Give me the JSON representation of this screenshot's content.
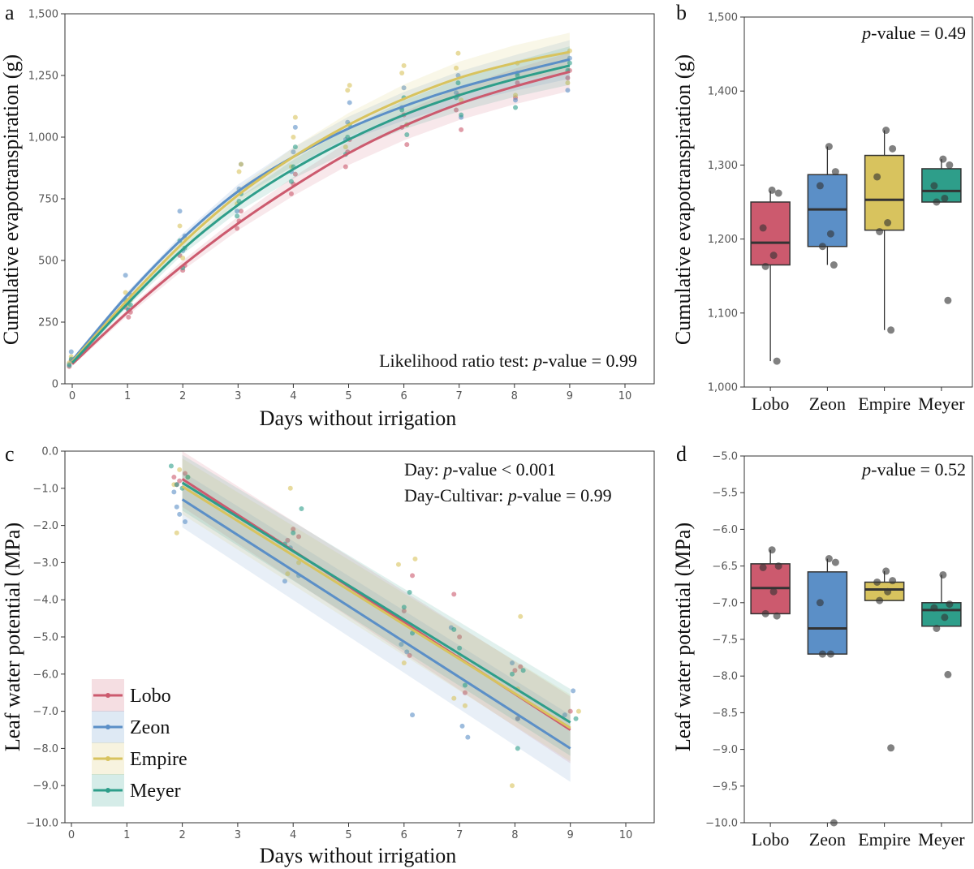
{
  "colors": {
    "Lobo": "#cc5a6e",
    "Zeon": "#5b8fc7",
    "Empire": "#d8c35e",
    "Meyer": "#2e9e8a"
  },
  "chart_data": [
    {
      "id": "a",
      "type": "scatter",
      "panel_label": "a",
      "xlabel": "Days without irrigation",
      "ylabel": "Cumulative evapotranspiration (g)",
      "xlim": [
        0,
        10
      ],
      "ylim": [
        0,
        1500
      ],
      "xticks": [
        0,
        1,
        2,
        3,
        4,
        5,
        6,
        7,
        8,
        9,
        10
      ],
      "yticks": [
        0,
        250,
        500,
        750,
        1000,
        1250,
        1500
      ],
      "ytick_labels": [
        "0",
        "250",
        "500",
        "750",
        "1,000",
        "1,250",
        "1,500"
      ],
      "annotation_plain": "Likelihood ratio test: ",
      "annotation_italic": "p",
      "annotation_rest": "-value = 0.99",
      "grid": false,
      "series": [
        {
          "name": "Lobo",
          "curve": {
            "x": [
              0,
              1,
              2,
              3,
              4,
              5,
              6,
              7,
              8,
              9
            ],
            "y": [
              80,
              290,
              480,
              650,
              800,
              935,
              1045,
              1135,
              1205,
              1265
            ]
          },
          "points": {
            "x": [
              0,
              0,
              1,
              1,
              1,
              2,
              2,
              2,
              3,
              3,
              3,
              4,
              4,
              4,
              5,
              5,
              5,
              6,
              6,
              6,
              7,
              7,
              7,
              8,
              8,
              9,
              9
            ],
            "y": [
              70,
              95,
              270,
              290,
              310,
              460,
              480,
              520,
              630,
              660,
              700,
              770,
              810,
              850,
              880,
              940,
              990,
              970,
              1040,
              1090,
              1030,
              1110,
              1170,
              1160,
              1220,
              1240,
              1270
            ]
          }
        },
        {
          "name": "Zeon",
          "curve": {
            "x": [
              0,
              1,
              2,
              3,
              4,
              5,
              6,
              7,
              8,
              9
            ],
            "y": [
              95,
              360,
              590,
              780,
              920,
              1035,
              1125,
              1200,
              1260,
              1315
            ]
          },
          "points": {
            "x": [
              0,
              0,
              1,
              1,
              1,
              2,
              2,
              2,
              3,
              3,
              3,
              4,
              4,
              4,
              5,
              5,
              5,
              6,
              6,
              6,
              7,
              7,
              7,
              8,
              8,
              9,
              9
            ],
            "y": [
              80,
              130,
              300,
              360,
              440,
              540,
              600,
              700,
              700,
              790,
              890,
              860,
              940,
              1040,
              990,
              1060,
              1140,
              1050,
              1120,
              1200,
              1080,
              1180,
              1250,
              1150,
              1260,
              1190,
              1320
            ]
          }
        },
        {
          "name": "Empire",
          "curve": {
            "x": [
              0,
              1,
              2,
              3,
              4,
              5,
              6,
              7,
              8,
              9
            ],
            "y": [
              90,
              340,
              570,
              765,
              920,
              1050,
              1155,
              1240,
              1300,
              1345
            ]
          },
          "points": {
            "x": [
              0,
              0,
              1,
              1,
              1,
              2,
              2,
              2,
              3,
              3,
              3,
              4,
              4,
              4,
              5,
              5,
              5,
              6,
              6,
              6,
              7,
              7,
              7,
              8,
              8,
              9,
              9
            ],
            "y": [
              85,
              110,
              320,
              340,
              370,
              510,
              590,
              640,
              730,
              860,
              890,
              880,
              1000,
              1080,
              960,
              1190,
              1210,
              1050,
              1260,
              1290,
              1150,
              1280,
              1340,
              1170,
              1300,
              1220,
              1350
            ]
          }
        },
        {
          "name": "Meyer",
          "curve": {
            "x": [
              0,
              1,
              2,
              3,
              4,
              5,
              6,
              7,
              8,
              9
            ],
            "y": [
              85,
              325,
              545,
              725,
              870,
              990,
              1090,
              1170,
              1235,
              1290
            ]
          },
          "points": {
            "x": [
              0,
              0,
              1,
              1,
              1,
              2,
              2,
              2,
              3,
              3,
              3,
              4,
              4,
              4,
              5,
              5,
              5,
              6,
              6,
              6,
              7,
              7,
              7,
              8,
              8,
              9,
              9
            ],
            "y": [
              75,
              100,
              300,
              320,
              340,
              470,
              550,
              580,
              680,
              740,
              770,
              820,
              880,
              960,
              930,
              1000,
              1050,
              1010,
              1110,
              1160,
              1090,
              1160,
              1220,
              1120,
              1250,
              1270,
              1300
            ]
          }
        }
      ]
    },
    {
      "id": "b",
      "type": "box",
      "panel_label": "b",
      "ylabel": "Cumulative evapotranspiration (g)",
      "ylim": [
        1000,
        1500
      ],
      "yticks": [
        1000,
        1100,
        1200,
        1300,
        1400,
        1500
      ],
      "ytick_labels": [
        "1,000",
        "1,100",
        "1,200",
        "1,300",
        "1,400",
        "1,500"
      ],
      "annotation_italic": "p",
      "annotation_rest": "-value = 0.49",
      "categories": [
        "Lobo",
        "Zeon",
        "Empire",
        "Meyer"
      ],
      "boxes": [
        {
          "name": "Lobo",
          "q1": 1165,
          "median": 1195,
          "q3": 1250,
          "whisker_low": 1035,
          "whisker_high": 1265,
          "points": [
            1035,
            1163,
            1178,
            1215,
            1262,
            1266
          ]
        },
        {
          "name": "Zeon",
          "q1": 1190,
          "median": 1240,
          "q3": 1287,
          "whisker_low": 1165,
          "whisker_high": 1325,
          "points": [
            1165,
            1190,
            1207,
            1272,
            1291,
            1325
          ]
        },
        {
          "name": "Empire",
          "q1": 1212,
          "median": 1253,
          "q3": 1313,
          "whisker_low": 1077,
          "whisker_high": 1347,
          "points": [
            1077,
            1210,
            1222,
            1284,
            1322,
            1347
          ]
        },
        {
          "name": "Meyer",
          "q1": 1250,
          "median": 1265,
          "q3": 1295,
          "whisker_low": 1250,
          "whisker_high": 1308,
          "points": [
            1117,
            1250,
            1255,
            1272,
            1300,
            1308
          ]
        }
      ]
    },
    {
      "id": "c",
      "type": "scatter",
      "panel_label": "c",
      "xlabel": "Days without irrigation",
      "ylabel": "Leaf water potential (MPa)",
      "xlim": [
        0,
        10
      ],
      "ylim": [
        -10,
        0
      ],
      "xticks": [
        0,
        1,
        2,
        3,
        4,
        5,
        6,
        7,
        8,
        9,
        10
      ],
      "yticks": [
        -10,
        -9,
        -8,
        -7,
        -6,
        -5,
        -4,
        -3,
        -2,
        -1,
        0
      ],
      "ytick_labels": [
        "−10.0",
        "−9.0",
        "−8.0",
        "−7.0",
        "−6.0",
        "−5.0",
        "−4.0",
        "−3.0",
        "−2.0",
        "−1.0",
        "0.0"
      ],
      "annotation1_plain": "Day: ",
      "annotation1_italic": "p",
      "annotation1_rest": "-value < 0.001",
      "annotation2_plain": "Day-Cultivar: ",
      "annotation2_italic": "p",
      "annotation2_rest": "-value = 0.99",
      "legend": [
        "Lobo",
        "Zeon",
        "Empire",
        "Meyer"
      ],
      "legend_position": "bottom-left",
      "series": [
        {
          "name": "Lobo",
          "line": {
            "x": [
              2,
              9
            ],
            "y": [
              -0.75,
              -7.5
            ]
          },
          "points": {
            "x": [
              1.85,
              1.9,
              1.95,
              2.05,
              3.9,
              4.0,
              4.1,
              6.0,
              6.1,
              6.15,
              6.9,
              7.0,
              7.1,
              8.0,
              8.05,
              8.1,
              9.0
            ],
            "y": [
              -0.7,
              -0.9,
              -0.8,
              -0.6,
              -2.4,
              -2.1,
              -2.3,
              -4.3,
              -5.5,
              -3.35,
              -3.85,
              -5.0,
              -6.5,
              -5.9,
              -7.2,
              -5.8,
              -7.0
            ]
          }
        },
        {
          "name": "Zeon",
          "line": {
            "x": [
              2,
              9
            ],
            "y": [
              -1.3,
              -8.0
            ]
          },
          "points": {
            "x": [
              1.85,
              1.9,
              1.95,
              2.05,
              3.85,
              3.95,
              4.1,
              5.95,
              6.05,
              6.15,
              6.85,
              7.05,
              7.15,
              7.95,
              8.05,
              8.9,
              9.05
            ],
            "y": [
              -1.1,
              -1.5,
              -1.7,
              -1.9,
              -3.5,
              -2.6,
              -3.35,
              -5.2,
              -5.4,
              -7.1,
              -4.75,
              -7.4,
              -7.7,
              -5.7,
              -7.2,
              -7.1,
              -6.45
            ]
          }
        },
        {
          "name": "Empire",
          "line": {
            "x": [
              2,
              9
            ],
            "y": [
              -0.95,
              -7.45
            ]
          },
          "points": {
            "x": [
              1.85,
              1.9,
              1.95,
              2.1,
              3.9,
              3.95,
              4.1,
              5.9,
              6.0,
              6.2,
              6.9,
              7.0,
              7.1,
              7.95,
              8.05,
              8.1,
              9.15
            ],
            "y": [
              -0.9,
              -2.2,
              -0.5,
              -0.7,
              -3.3,
              -1.0,
              -3.0,
              -3.05,
              -5.7,
              -2.9,
              -6.65,
              -5.5,
              -6.85,
              -9.0,
              -6.4,
              -4.45,
              -7.0
            ]
          }
        },
        {
          "name": "Meyer",
          "line": {
            "x": [
              2,
              9
            ],
            "y": [
              -0.85,
              -7.3
            ]
          },
          "points": {
            "x": [
              1.8,
              1.9,
              2.0,
              2.1,
              3.85,
              4.0,
              4.15,
              6.0,
              6.1,
              6.15,
              6.9,
              7.0,
              7.1,
              7.95,
              8.05,
              8.15,
              9.1
            ],
            "y": [
              -0.4,
              -0.9,
              -1.0,
              -0.7,
              -2.5,
              -2.2,
              -1.55,
              -4.2,
              -3.8,
              -4.9,
              -4.8,
              -5.3,
              -6.3,
              -6.0,
              -8.0,
              -5.9,
              -7.2
            ]
          }
        }
      ]
    },
    {
      "id": "d",
      "type": "box",
      "panel_label": "d",
      "ylabel": "Leaf water potential (MPa)",
      "ylim": [
        -10,
        -5
      ],
      "yticks": [
        -10,
        -9.5,
        -9,
        -8.5,
        -8,
        -7.5,
        -7,
        -6.5,
        -6,
        -5.5,
        -5
      ],
      "ytick_labels": [
        "−10.0",
        "−9.5",
        "−9.0",
        "−8.5",
        "−8.0",
        "−7.5",
        "−7.0",
        "−6.5",
        "−6.0",
        "−5.5",
        "−5.0"
      ],
      "annotation_italic": "p",
      "annotation_rest": "-value = 0.52",
      "categories": [
        "Lobo",
        "Zeon",
        "Empire",
        "Meyer"
      ],
      "boxes": [
        {
          "name": "Lobo",
          "q1": -7.15,
          "median": -6.8,
          "q3": -6.47,
          "whisker_low": -7.15,
          "whisker_high": -6.28,
          "points": [
            -7.18,
            -7.15,
            -6.85,
            -6.52,
            -6.5,
            -6.28
          ]
        },
        {
          "name": "Zeon",
          "q1": -7.7,
          "median": -7.35,
          "q3": -6.58,
          "whisker_low": -7.7,
          "whisker_high": -6.4,
          "points": [
            -10.0,
            -7.7,
            -7.7,
            -7.0,
            -6.45,
            -6.4
          ]
        },
        {
          "name": "Empire",
          "q1": -6.97,
          "median": -6.82,
          "q3": -6.72,
          "whisker_low": -6.97,
          "whisker_high": -6.57,
          "points": [
            -8.98,
            -6.97,
            -6.85,
            -6.72,
            -6.7,
            -6.57
          ]
        },
        {
          "name": "Meyer",
          "q1": -7.32,
          "median": -7.1,
          "q3": -7.0,
          "whisker_low": -7.32,
          "whisker_high": -6.62,
          "points": [
            -7.98,
            -7.35,
            -7.2,
            -7.07,
            -7.02,
            -6.62
          ]
        }
      ]
    }
  ]
}
